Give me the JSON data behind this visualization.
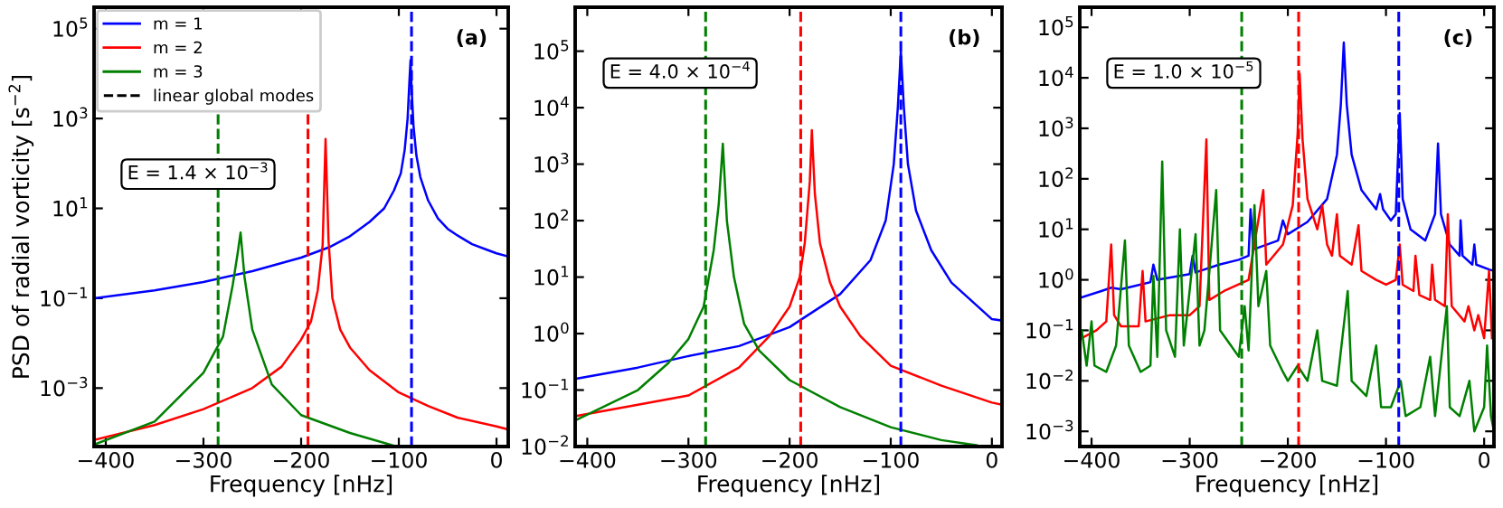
{
  "chart_data": [
    {
      "type": "line",
      "ylabel": "PSD of radial vorticity [s$^{−2}$]",
      "xlabel": "Frequency [nHz]",
      "log": "y",
      "legend": "top left",
      "xlim": [
        -412,
        12
      ],
      "ylim": [
        5e-05,
        300000.0
      ],
      "xticks": [
        {
          "value": -400,
          "label": "−400"
        },
        {
          "value": -300,
          "label": "−300"
        },
        {
          "value": -200,
          "label": "−200"
        },
        {
          "value": -100,
          "label": "−100"
        },
        0
      ],
      "yticks": [
        {
          "value": 0.001,
          "label": "10$^{−3}$"
        },
        {
          "value": 0.1,
          "label": "10$^{−1}$"
        },
        {
          "value": 10,
          "label": "10$^{1}$"
        },
        {
          "value": 1000,
          "label": "10$^{3}$"
        },
        {
          "value": 100000,
          "label": "10$^{5}$"
        }
      ],
      "annotations": [
        "(a)",
        "E = 1.4 × 10$^{−3}$"
      ],
      "series": [
        {
          "name": "m = 1",
          "color": "#0000ff",
          "x": [
            -412,
            -350,
            -300,
            -250,
            -200,
            -170,
            -150,
            -130,
            -115,
            -105,
            -98,
            -94,
            -91,
            -89,
            -88,
            -87,
            -85,
            -82,
            -78,
            -70,
            -60,
            -50,
            -40,
            -25,
            -10,
            0,
            12
          ],
          "values": [
            0.1,
            0.15,
            0.23,
            0.4,
            0.8,
            1.4,
            2.4,
            5,
            10,
            25,
            60,
            200,
            1000,
            8000,
            20000,
            5000,
            700,
            150,
            50,
            15,
            6,
            3.5,
            2.5,
            1.6,
            1.2,
            1.0,
            0.85
          ]
        },
        {
          "name": "m = 2",
          "color": "#ff0000",
          "x": [
            -412,
            -350,
            -300,
            -250,
            -220,
            -200,
            -190,
            -183,
            -178,
            -175,
            -172,
            -168,
            -160,
            -150,
            -130,
            -100,
            -70,
            -40,
            0,
            12
          ],
          "values": [
            7e-05,
            0.00015,
            0.00034,
            0.001,
            0.003,
            0.012,
            0.03,
            0.15,
            1.5,
            350,
            2,
            0.1,
            0.02,
            0.008,
            0.0025,
            0.0008,
            0.0004,
            0.00022,
            0.00014,
            0.00012
          ]
        },
        {
          "name": "m = 3",
          "color": "#008000",
          "x": [
            -412,
            -350,
            -300,
            -280,
            -270,
            -265,
            -262,
            -258,
            -250,
            -230,
            -200,
            -150,
            -105
          ],
          "values": [
            5.5e-05,
            0.00018,
            0.0022,
            0.014,
            0.2,
            1.0,
            2.9,
            0.3,
            0.02,
            0.0012,
            0.00025,
            0.0001,
            5.2e-05
          ]
        },
        {
          "name": "linear global modes",
          "color": "#000000",
          "line_style": "dashed"
        }
      ],
      "ref_lines": [
        {
          "axis": "x",
          "value": -285,
          "color": "#008000",
          "line_style": "dashed"
        },
        {
          "axis": "x",
          "value": -193,
          "color": "#ff0000",
          "line_style": "dashed"
        },
        {
          "axis": "x",
          "value": -87,
          "color": "#0000ff",
          "line_style": "dashed"
        }
      ]
    },
    {
      "type": "line",
      "xlabel": "Frequency [nHz]",
      "log": "y",
      "xlim": [
        -412,
        10
      ],
      "ylim": [
        0.01,
        600000.0
      ],
      "xticks": [
        {
          "value": -400,
          "label": "−400"
        },
        {
          "value": -300,
          "label": "−300"
        },
        {
          "value": -200,
          "label": "−200"
        },
        {
          "value": -100,
          "label": "−100"
        },
        0
      ],
      "yticks": [
        {
          "value": 0.01,
          "label": "10$^{−2}$"
        },
        {
          "value": 0.1,
          "label": "10$^{−1}$"
        },
        {
          "value": 1,
          "label": "10$^{0}$"
        },
        {
          "value": 10,
          "label": "10$^{1}$"
        },
        {
          "value": 100,
          "label": "10$^{2}$"
        },
        {
          "value": 1000,
          "label": "10$^{3}$"
        },
        {
          "value": 10000,
          "label": "10$^{4}$"
        },
        {
          "value": 100000,
          "label": "10$^{5}$"
        }
      ],
      "annotations": [
        "(b)",
        "E = 4.0 × 10$^{−4}$"
      ],
      "series": [
        {
          "color": "#0000ff",
          "x": [
            -410,
            -350,
            -300,
            -250,
            -200,
            -150,
            -120,
            -105,
            -97,
            -93,
            -90,
            -87,
            -83,
            -75,
            -60,
            -40,
            0,
            10
          ],
          "values": [
            0.16,
            0.25,
            0.4,
            0.6,
            1.3,
            5,
            20,
            100,
            1000,
            10000,
            100000,
            10000,
            1000,
            150,
            30,
            8,
            1.8,
            1.7
          ]
        },
        {
          "color": "#ff0000",
          "x": [
            -410,
            -350,
            -300,
            -250,
            -220,
            -200,
            -190,
            -185,
            -180,
            -178,
            -175,
            -170,
            -160,
            -150,
            -130,
            -100,
            -50,
            0,
            10
          ],
          "values": [
            0.035,
            0.055,
            0.08,
            0.25,
            0.9,
            3,
            10,
            40,
            500,
            4000,
            300,
            40,
            8,
            3,
            0.9,
            0.27,
            0.12,
            0.06,
            0.055
          ]
        },
        {
          "color": "#008000",
          "x": [
            -410,
            -350,
            -320,
            -300,
            -285,
            -275,
            -270,
            -266,
            -262,
            -255,
            -245,
            -230,
            -200,
            -150,
            -100,
            -50,
            -15
          ],
          "values": [
            0.03,
            0.1,
            0.3,
            0.8,
            3,
            30,
            200,
            2300,
            100,
            10,
            1.5,
            0.5,
            0.15,
            0.05,
            0.022,
            0.013,
            0.0105
          ]
        }
      ],
      "ref_lines": [
        {
          "axis": "x",
          "value": -283,
          "color": "#008000",
          "line_style": "dashed"
        },
        {
          "axis": "x",
          "value": -189,
          "color": "#ff0000",
          "line_style": "dashed"
        },
        {
          "axis": "x",
          "value": -90,
          "color": "#0000ff",
          "line_style": "dashed"
        }
      ]
    },
    {
      "type": "line",
      "xlabel": "Frequency [nHz]",
      "log": "y",
      "xlim": [
        -412,
        10
      ],
      "ylim": [
        0.0005,
        250000.0
      ],
      "xticks": [
        {
          "value": -400,
          "label": "−400"
        },
        {
          "value": -300,
          "label": "−300"
        },
        {
          "value": -200,
          "label": "−200"
        },
        {
          "value": -100,
          "label": "−100"
        },
        0
      ],
      "yticks": [
        {
          "value": 0.001,
          "label": "10$^{−3}$"
        },
        {
          "value": 0.01,
          "label": "10$^{−2}$"
        },
        {
          "value": 0.1,
          "label": "10$^{−1}$"
        },
        {
          "value": 1,
          "label": "10$^{0}$"
        },
        {
          "value": 10,
          "label": "10$^{1}$"
        },
        {
          "value": 100,
          "label": "10$^{2}$"
        },
        {
          "value": 1000,
          "label": "10$^{3}$"
        },
        {
          "value": 10000,
          "label": "10$^{4}$"
        },
        {
          "value": 100000,
          "label": "10$^{5}$"
        }
      ],
      "annotations": [
        "(c)",
        "E = 1.0 × 10$^{−5}$"
      ],
      "series": [
        {
          "color": "#0000ff",
          "x": [
            -410,
            -390,
            -380,
            -370,
            -340,
            -337,
            -333,
            -300,
            -297,
            -294,
            -270,
            -250,
            -240,
            -238,
            -235,
            -210,
            -205,
            -200,
            -180,
            -160,
            -150,
            -146,
            -143,
            -140,
            -135,
            -125,
            -110,
            -106,
            -103,
            -95,
            -90,
            -86,
            -83,
            -75,
            -60,
            -50,
            -47,
            -44,
            -35,
            -25,
            -24,
            -22,
            -12,
            -10,
            -8,
            5,
            10
          ],
          "values": [
            0.45,
            0.6,
            0.7,
            0.65,
            0.9,
            2,
            1,
            1.3,
            3,
            1.4,
            2,
            2.5,
            3,
            25,
            4,
            6,
            15,
            8,
            14,
            40,
            300,
            3000,
            50000,
            3000,
            300,
            60,
            25,
            50,
            25,
            15,
            20,
            2000,
            40,
            10,
            6,
            20,
            500,
            20,
            5,
            3,
            15,
            3,
            2,
            5,
            2,
            1.6,
            1.5
          ]
        },
        {
          "color": "#ff0000",
          "x": [
            -410,
            -395,
            -385,
            -380,
            -377,
            -370,
            -352,
            -348,
            -345,
            -320,
            -300,
            -290,
            -283,
            -280,
            -265,
            -240,
            -225,
            -222,
            -205,
            -195,
            -190,
            -188,
            -185,
            -180,
            -170,
            -165,
            -160,
            -155,
            -150,
            -147,
            -135,
            -128,
            -125,
            -110,
            -100,
            -90,
            -86,
            -83,
            -72,
            -70,
            -66,
            -55,
            -53,
            -50,
            -40,
            -37,
            -33,
            -20,
            -16,
            -10,
            -6,
            0,
            5,
            8
          ],
          "values": [
            0.07,
            0.1,
            0.15,
            5,
            0.2,
            0.12,
            0.12,
            1.5,
            0.15,
            0.2,
            0.2,
            0.3,
            600,
            0.4,
            0.6,
            1,
            60,
            2,
            5,
            30,
            800,
            12000,
            600,
            40,
            10,
            30,
            5,
            3,
            20,
            3,
            2,
            12,
            1.5,
            1,
            0.8,
            1,
            5,
            0.8,
            0.6,
            3,
            0.5,
            0.4,
            2,
            0.4,
            0.3,
            20,
            0.3,
            0.15,
            0.3,
            0.1,
            0.2,
            0.07,
            1.5,
            0.07
          ]
        },
        {
          "color": "#008000",
          "x": [
            -410,
            -405,
            -400,
            -397,
            -385,
            -375,
            -366,
            -362,
            -350,
            -340,
            -337,
            -333,
            -328,
            -324,
            -315,
            -310,
            -306,
            -294,
            -290,
            -285,
            -273,
            -269,
            -258,
            -250,
            -244,
            -240,
            -234,
            -230,
            -222,
            -218,
            -205,
            -200,
            -190,
            -180,
            -170,
            -165,
            -150,
            -139,
            -135,
            -120,
            -110,
            -105,
            -95,
            -85,
            -80,
            -65,
            -55,
            -50,
            -38,
            -35,
            -25,
            -15,
            -10,
            0,
            3,
            7,
            10
          ],
          "values": [
            0.1,
            0.02,
            0.15,
            0.02,
            0.015,
            0.05,
            6,
            0.05,
            0.015,
            0.02,
            1.2,
            0.03,
            220,
            0.1,
            0.03,
            10,
            0.05,
            8,
            0.05,
            0.1,
            60,
            0.1,
            0.05,
            0.03,
            0.3,
            0.04,
            30,
            0.3,
            1.5,
            0.05,
            0.015,
            0.01,
            0.02,
            0.01,
            0.1,
            0.01,
            0.008,
            0.6,
            0.01,
            0.005,
            0.05,
            0.003,
            0.003,
            0.01,
            0.002,
            0.003,
            0.03,
            0.002,
            0.3,
            0.003,
            0.002,
            0.01,
            0.001,
            0.003,
            0.05,
            0.002,
            0.001
          ]
        }
      ],
      "ref_lines": [
        {
          "axis": "x",
          "value": -247,
          "color": "#008000",
          "line_style": "dashed"
        },
        {
          "axis": "x",
          "value": -189,
          "color": "#ff0000",
          "line_style": "dashed"
        },
        {
          "axis": "x",
          "value": -87,
          "color": "#0000ff",
          "line_style": "dashed"
        }
      ]
    }
  ]
}
